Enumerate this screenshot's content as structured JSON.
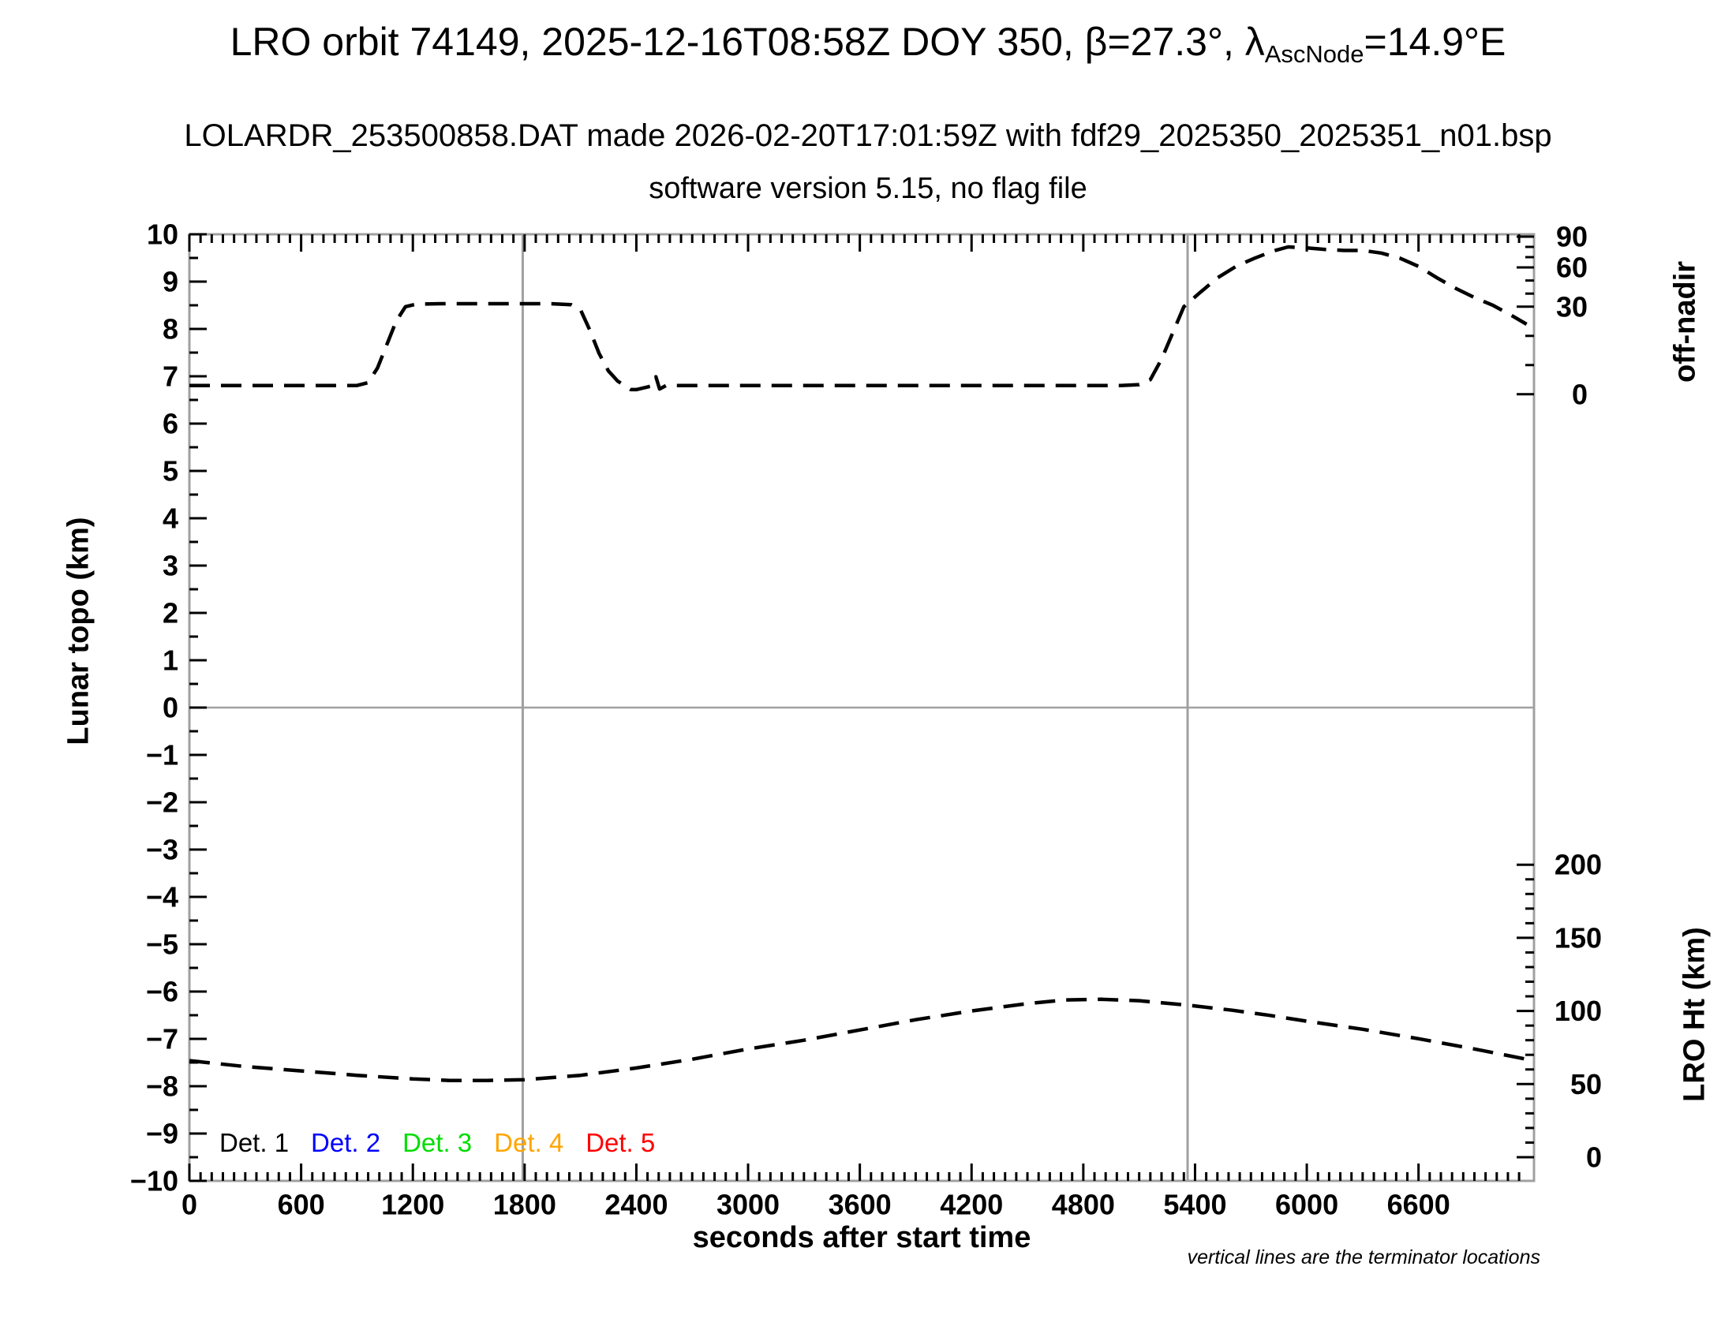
{
  "title": {
    "pre": "LRO orbit 74149, 2025-12-16T08:58Z DOY 350, β=27.3°, λ",
    "subscript": "AscNode",
    "post": "=14.9°E"
  },
  "subtitle": "LOLARDR_253500858.DAT made 2026-02-20T17:01:59Z with fdf29_2025350_2025351_n01.bsp",
  "software_line": "software version 5.15, no flag file",
  "footnote": "vertical lines are the terminator locations",
  "chart_data": {
    "type": "line",
    "title": "LRO orbit 74149, 2025-12-16T08:58Z DOY 350, β=27.3°, λAscNode=14.9°E",
    "xlabel": "seconds after start time",
    "xlim": [
      0,
      7220
    ],
    "x_major_ticks": [
      0,
      600,
      1200,
      1800,
      2400,
      3000,
      3600,
      4200,
      4800,
      5400,
      6000,
      6600
    ],
    "x_minor_step": 60,
    "grid": false,
    "left_axis": {
      "label": "Lunar topo (km)",
      "lim": [
        -10,
        10
      ],
      "ticks": [
        10,
        9,
        8,
        7,
        6,
        5,
        4,
        3,
        2,
        1,
        0,
        -1,
        -2,
        -3,
        -4,
        -5,
        -6,
        -7,
        -8,
        -9,
        -10
      ],
      "minor_step": 0.5
    },
    "right_axis_top": {
      "label": "off-nadir",
      "units": "deg",
      "ticks": [
        90,
        60,
        30,
        0
      ],
      "minor_ticks": [
        10,
        20,
        40,
        50,
        70,
        80
      ],
      "anchors_deg_to_left_units": [
        [
          0,
          6.62
        ],
        [
          30,
          8.47
        ],
        [
          60,
          9.3
        ],
        [
          90,
          9.95
        ]
      ]
    },
    "right_axis_bottom": {
      "label": "LRO Ht (km)",
      "units": "km",
      "ticks": [
        200,
        150,
        100,
        50,
        0
      ],
      "minor_step": 10,
      "map_to_left_units": {
        "at_zero_km": -9.5,
        "per_km": 0.0309
      }
    },
    "series": [
      {
        "name": "off-nadir angle",
        "maps_to": "right_axis_top",
        "units": "deg",
        "color": "#000000",
        "line_style": "dashed",
        "points": [
          [
            0,
            3
          ],
          [
            250,
            3
          ],
          [
            500,
            3
          ],
          [
            750,
            3
          ],
          [
            900,
            3
          ],
          [
            960,
            4
          ],
          [
            1010,
            9
          ],
          [
            1060,
            17
          ],
          [
            1110,
            25
          ],
          [
            1160,
            30
          ],
          [
            1220,
            32
          ],
          [
            1350,
            32.3
          ],
          [
            1500,
            32.3
          ],
          [
            1650,
            32.3
          ],
          [
            1800,
            32.3
          ],
          [
            1950,
            32.2
          ],
          [
            2050,
            31.5
          ],
          [
            2100,
            29
          ],
          [
            2150,
            22
          ],
          [
            2200,
            14
          ],
          [
            2250,
            8
          ],
          [
            2300,
            4.5
          ],
          [
            2340,
            2.8
          ],
          [
            2370,
            1.6
          ],
          [
            2400,
            1.6
          ],
          [
            2440,
            2.2
          ],
          [
            2480,
            2.8
          ],
          [
            2505,
            6
          ],
          [
            2525,
            1.8
          ],
          [
            2560,
            3
          ],
          [
            2750,
            3
          ],
          [
            3000,
            3
          ],
          [
            3250,
            3
          ],
          [
            3500,
            3
          ],
          [
            3750,
            3
          ],
          [
            4000,
            3
          ],
          [
            4250,
            3
          ],
          [
            4500,
            3
          ],
          [
            4750,
            3
          ],
          [
            5000,
            3
          ],
          [
            5100,
            3.3
          ],
          [
            5160,
            5
          ],
          [
            5220,
            12
          ],
          [
            5280,
            21
          ],
          [
            5340,
            30
          ],
          [
            5420,
            40
          ],
          [
            5520,
            52
          ],
          [
            5620,
            61
          ],
          [
            5720,
            69
          ],
          [
            5820,
            76
          ],
          [
            5900,
            80
          ],
          [
            6000,
            79
          ],
          [
            6100,
            77.5
          ],
          [
            6200,
            76.5
          ],
          [
            6300,
            76.5
          ],
          [
            6400,
            74
          ],
          [
            6500,
            69
          ],
          [
            6600,
            61
          ],
          [
            6700,
            52
          ],
          [
            6800,
            44
          ],
          [
            6900,
            37
          ],
          [
            7000,
            31
          ],
          [
            7100,
            27
          ],
          [
            7180,
            24
          ]
        ]
      },
      {
        "name": "LRO height",
        "maps_to": "right_axis_bottom",
        "units": "km",
        "color": "#000000",
        "line_style": "dashed",
        "points": [
          [
            0,
            66
          ],
          [
            300,
            62
          ],
          [
            600,
            59
          ],
          [
            900,
            56
          ],
          [
            1200,
            53.5
          ],
          [
            1400,
            52.5
          ],
          [
            1600,
            52.5
          ],
          [
            1800,
            53
          ],
          [
            2100,
            56
          ],
          [
            2400,
            61
          ],
          [
            2700,
            67
          ],
          [
            3000,
            74
          ],
          [
            3300,
            80
          ],
          [
            3600,
            87
          ],
          [
            3900,
            94
          ],
          [
            4200,
            100
          ],
          [
            4500,
            105
          ],
          [
            4700,
            107.5
          ],
          [
            4900,
            108
          ],
          [
            5100,
            107
          ],
          [
            5360,
            104
          ],
          [
            5600,
            100.5
          ],
          [
            5800,
            97
          ],
          [
            6000,
            93
          ],
          [
            6300,
            87.5
          ],
          [
            6600,
            81
          ],
          [
            6900,
            74
          ],
          [
            7180,
            67
          ]
        ]
      }
    ],
    "terminator_lines_x": [
      1790,
      5360
    ],
    "zero_line_y_left": 0,
    "legend": {
      "position": "inside bottom-left",
      "items": [
        {
          "label": "Det. 1",
          "color": "#000000"
        },
        {
          "label": "Det. 2",
          "color": "#0000ff"
        },
        {
          "label": "Det. 3",
          "color": "#00dd00"
        },
        {
          "label": "Det. 4",
          "color": "#ffa500"
        },
        {
          "label": "Det. 5",
          "color": "#ff0000"
        }
      ]
    },
    "colors": {
      "frame": "#a0a0a0",
      "ticks": "#000000",
      "reference_lines": "#a0a0a0"
    }
  }
}
